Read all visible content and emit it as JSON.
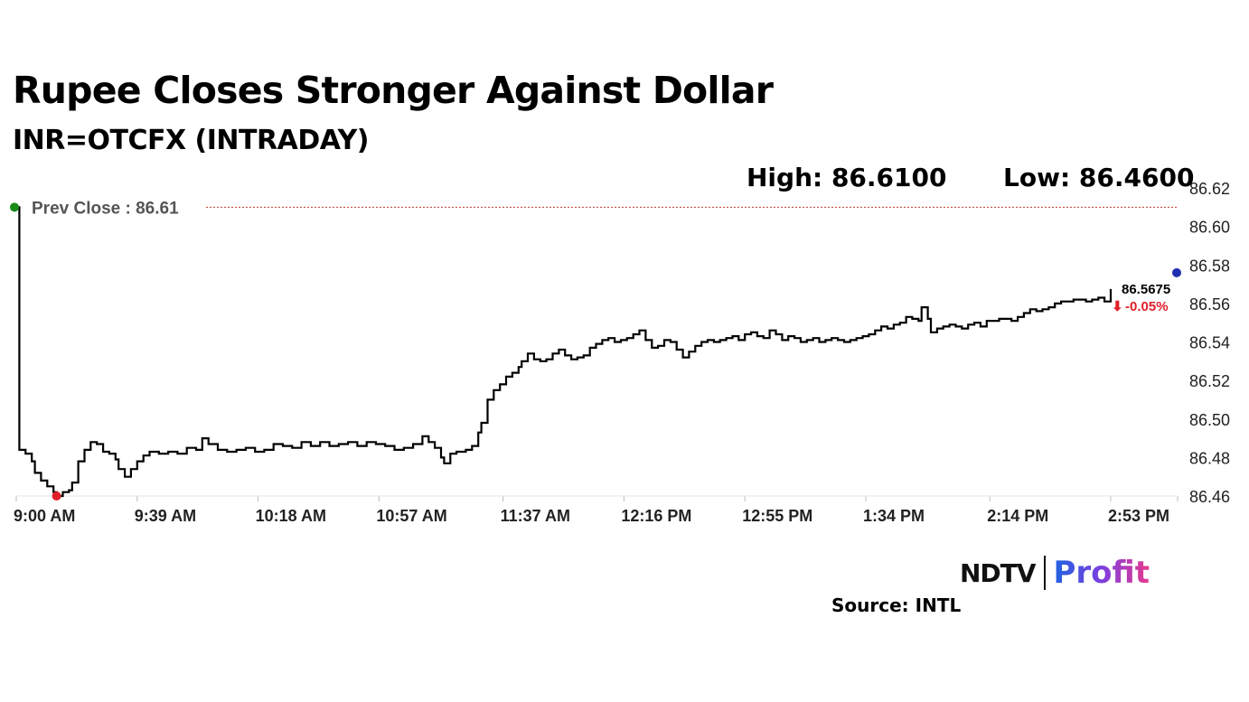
{
  "header": {
    "title": "Rupee Closes Stronger Against Dollar",
    "subtitle": "INR=OTCFX (INTRADAY)",
    "high_text": "High: 86.6100",
    "low_text": "Low: 86.4600"
  },
  "branding": {
    "logo_ndtv": "NDTV",
    "logo_profit": "Profit",
    "source": "Source: INTL"
  },
  "colors": {
    "line": "#000000",
    "prev_close_line": "#c0392b",
    "start_marker": "#1a8a1a",
    "low_marker": "#e0202a",
    "end_marker": "#1f2fb0",
    "change_text": "#e0202a"
  },
  "chart_data": {
    "type": "line",
    "title": "Rupee Closes Stronger Against Dollar",
    "subtitle": "INR=OTCFX (INTRADAY)",
    "xlabel": "",
    "ylabel": "",
    "ylim": [
      86.46,
      86.62
    ],
    "yticks": [
      "86.62",
      "86.60",
      "86.58",
      "86.56",
      "86.54",
      "86.52",
      "86.50",
      "86.48",
      "86.46"
    ],
    "xticks": [
      "9:00 AM",
      "9:39 AM",
      "10:18 AM",
      "10:57 AM",
      "11:37 AM",
      "12:16 PM",
      "12:55 PM",
      "1:34 PM",
      "2:14 PM",
      "2:53 PM"
    ],
    "x_units": "minutes after 9:00 AM",
    "xlim": [
      0,
      390
    ],
    "xtick_values": [
      0,
      39,
      78,
      117,
      157,
      196,
      235,
      274,
      314,
      353
    ],
    "grid": false,
    "prev_close": {
      "value": 86.61,
      "label": "Prev Close : 86.61"
    },
    "high": 86.61,
    "low": 86.46,
    "last": {
      "value": 86.5675,
      "label": "86.5675",
      "change": "-0.05%"
    },
    "series": [
      {
        "points": [
          [
            0,
            86.61
          ],
          [
            1,
            86.484
          ],
          [
            3,
            86.482
          ],
          [
            5,
            86.478
          ],
          [
            6,
            86.472
          ],
          [
            8,
            86.468
          ],
          [
            10,
            86.465
          ],
          [
            12,
            86.462
          ],
          [
            13,
            86.46
          ],
          [
            15,
            86.462
          ],
          [
            17,
            86.463
          ],
          [
            18,
            86.467
          ],
          [
            20,
            86.478
          ],
          [
            22,
            86.484
          ],
          [
            24,
            86.488
          ],
          [
            26,
            86.487
          ],
          [
            28,
            86.483
          ],
          [
            30,
            86.482
          ],
          [
            32,
            86.479
          ],
          [
            33,
            86.474
          ],
          [
            35,
            86.47
          ],
          [
            37,
            86.474
          ],
          [
            39,
            86.478
          ],
          [
            41,
            86.481
          ],
          [
            43,
            86.483
          ],
          [
            46,
            86.482
          ],
          [
            49,
            86.483
          ],
          [
            52,
            86.482
          ],
          [
            55,
            86.485
          ],
          [
            58,
            86.484
          ],
          [
            60,
            86.49
          ],
          [
            62,
            86.487
          ],
          [
            65,
            86.484
          ],
          [
            68,
            86.483
          ],
          [
            71,
            86.484
          ],
          [
            74,
            86.485
          ],
          [
            77,
            86.483
          ],
          [
            80,
            86.484
          ],
          [
            83,
            86.487
          ],
          [
            86,
            86.486
          ],
          [
            89,
            86.485
          ],
          [
            92,
            86.488
          ],
          [
            95,
            86.486
          ],
          [
            98,
            86.488
          ],
          [
            101,
            86.486
          ],
          [
            104,
            86.487
          ],
          [
            107,
            86.488
          ],
          [
            110,
            86.486
          ],
          [
            113,
            86.488
          ],
          [
            116,
            86.487
          ],
          [
            119,
            86.486
          ],
          [
            122,
            86.484
          ],
          [
            125,
            86.485
          ],
          [
            128,
            86.487
          ],
          [
            131,
            86.491
          ],
          [
            133,
            86.488
          ],
          [
            135,
            86.485
          ],
          [
            137,
            86.48
          ],
          [
            138,
            86.477
          ],
          [
            140,
            86.482
          ],
          [
            142,
            86.483
          ],
          [
            145,
            86.484
          ],
          [
            147,
            86.486
          ],
          [
            149,
            86.493
          ],
          [
            150,
            86.498
          ],
          [
            152,
            86.51
          ],
          [
            154,
            86.515
          ],
          [
            156,
            86.518
          ],
          [
            158,
            86.522
          ],
          [
            160,
            86.524
          ],
          [
            162,
            86.527
          ],
          [
            163,
            86.53
          ],
          [
            165,
            86.534
          ],
          [
            167,
            86.531
          ],
          [
            169,
            86.53
          ],
          [
            171,
            86.531
          ],
          [
            173,
            86.534
          ],
          [
            175,
            86.536
          ],
          [
            177,
            86.533
          ],
          [
            179,
            86.531
          ],
          [
            181,
            86.532
          ],
          [
            183,
            86.533
          ],
          [
            185,
            86.537
          ],
          [
            187,
            86.539
          ],
          [
            189,
            86.541
          ],
          [
            191,
            86.542
          ],
          [
            193,
            86.54
          ],
          [
            195,
            86.541
          ],
          [
            197,
            86.542
          ],
          [
            199,
            86.544
          ],
          [
            201,
            86.546
          ],
          [
            203,
            86.541
          ],
          [
            205,
            86.537
          ],
          [
            207,
            86.538
          ],
          [
            209,
            86.541
          ],
          [
            211,
            86.54
          ],
          [
            213,
            86.536
          ],
          [
            215,
            86.532
          ],
          [
            217,
            86.535
          ],
          [
            219,
            86.538
          ],
          [
            221,
            86.54
          ],
          [
            223,
            86.541
          ],
          [
            225,
            86.54
          ],
          [
            227,
            86.541
          ],
          [
            229,
            86.542
          ],
          [
            231,
            86.543
          ],
          [
            233,
            86.541
          ],
          [
            235,
            86.544
          ],
          [
            237,
            86.545
          ],
          [
            239,
            86.543
          ],
          [
            241,
            86.542
          ],
          [
            243,
            86.546
          ],
          [
            245,
            86.544
          ],
          [
            247,
            86.541
          ],
          [
            249,
            86.543
          ],
          [
            251,
            86.542
          ],
          [
            253,
            86.54
          ],
          [
            255,
            86.541
          ],
          [
            257,
            86.542
          ],
          [
            259,
            86.54
          ],
          [
            261,
            86.541
          ],
          [
            263,
            86.542
          ],
          [
            265,
            86.541
          ],
          [
            267,
            86.54
          ],
          [
            269,
            86.541
          ],
          [
            271,
            86.542
          ],
          [
            273,
            86.543
          ],
          [
            275,
            86.544
          ],
          [
            277,
            86.546
          ],
          [
            279,
            86.548
          ],
          [
            281,
            86.547
          ],
          [
            283,
            86.549
          ],
          [
            285,
            86.55
          ],
          [
            287,
            86.553
          ],
          [
            289,
            86.552
          ],
          [
            291,
            86.551
          ],
          [
            292,
            86.558
          ],
          [
            294,
            86.552
          ],
          [
            295,
            86.545
          ],
          [
            297,
            86.547
          ],
          [
            299,
            86.548
          ],
          [
            301,
            86.549
          ],
          [
            303,
            86.548
          ],
          [
            305,
            86.547
          ],
          [
            307,
            86.549
          ],
          [
            309,
            86.55
          ],
          [
            311,
            86.548
          ],
          [
            313,
            86.551
          ],
          [
            315,
            86.551
          ],
          [
            317,
            86.552
          ],
          [
            319,
            86.552
          ],
          [
            321,
            86.551
          ],
          [
            323,
            86.553
          ],
          [
            325,
            86.555
          ],
          [
            327,
            86.557
          ],
          [
            329,
            86.556
          ],
          [
            331,
            86.557
          ],
          [
            333,
            86.558
          ],
          [
            335,
            86.56
          ],
          [
            337,
            86.561
          ],
          [
            339,
            86.561
          ],
          [
            341,
            86.562
          ],
          [
            343,
            86.562
          ],
          [
            345,
            86.561
          ],
          [
            347,
            86.562
          ],
          [
            349,
            86.563
          ],
          [
            351,
            86.561
          ],
          [
            353,
            86.5675
          ]
        ]
      }
    ]
  }
}
